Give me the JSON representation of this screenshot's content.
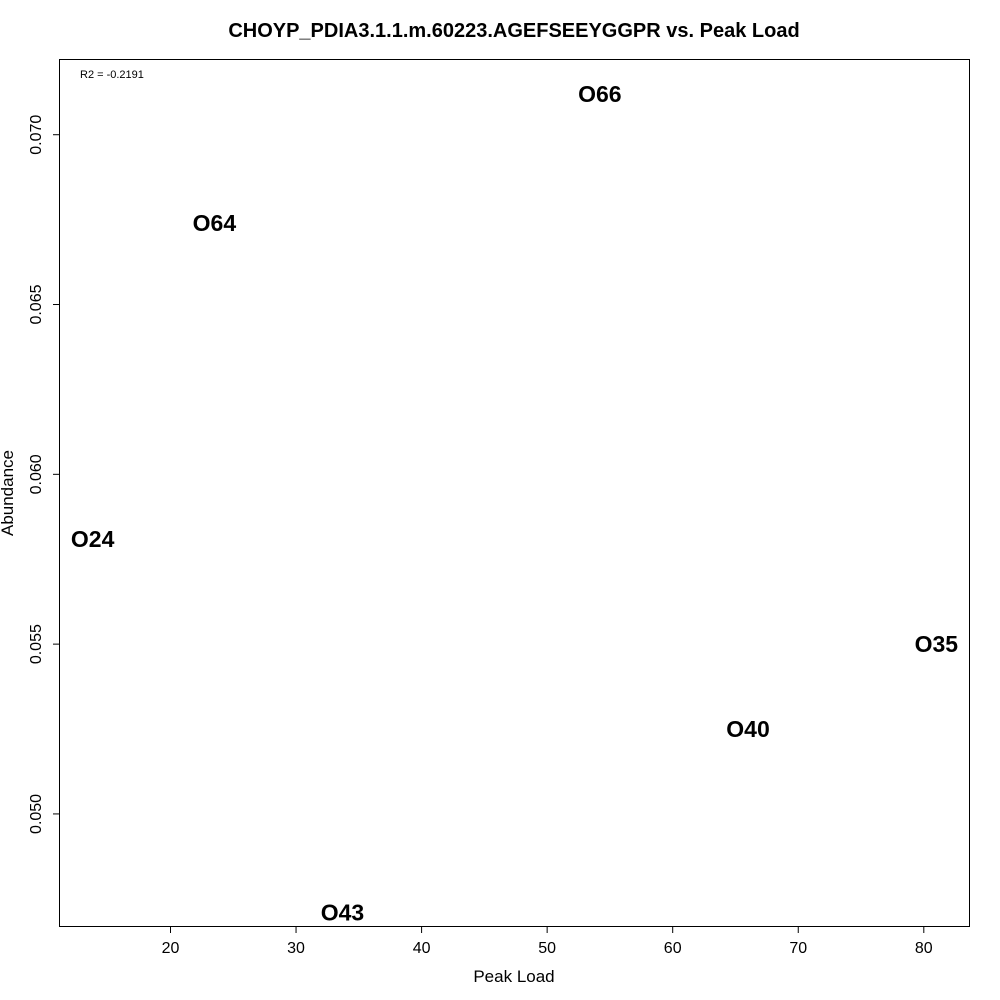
{
  "chart_data": {
    "type": "scatter",
    "title": "CHOYP_PDIA3.1.1.m.60223.AGEFSEEYGGPR vs. Peak Load",
    "xlabel": "Peak Load",
    "ylabel": "Abundance",
    "annotation": "R2 = -0.2191",
    "xlim": [
      11.2,
      83.6
    ],
    "ylim": [
      0.0467,
      0.0722
    ],
    "x_ticks": [
      20,
      30,
      40,
      50,
      60,
      70,
      80
    ],
    "y_ticks": [
      0.05,
      0.055,
      0.06,
      0.065,
      0.07
    ],
    "y_tick_labels": [
      "0.050",
      "0.055",
      "0.060",
      "0.065",
      "0.070"
    ],
    "grid": false,
    "points": [
      {
        "label": "O66",
        "x": 54.2,
        "y": 0.0712
      },
      {
        "label": "O64",
        "x": 23.5,
        "y": 0.0674
      },
      {
        "label": "O24",
        "x": 13.8,
        "y": 0.0581
      },
      {
        "label": "O35",
        "x": 81.0,
        "y": 0.055
      },
      {
        "label": "O40",
        "x": 66.0,
        "y": 0.0525
      },
      {
        "label": "O43",
        "x": 33.7,
        "y": 0.0471
      }
    ]
  }
}
